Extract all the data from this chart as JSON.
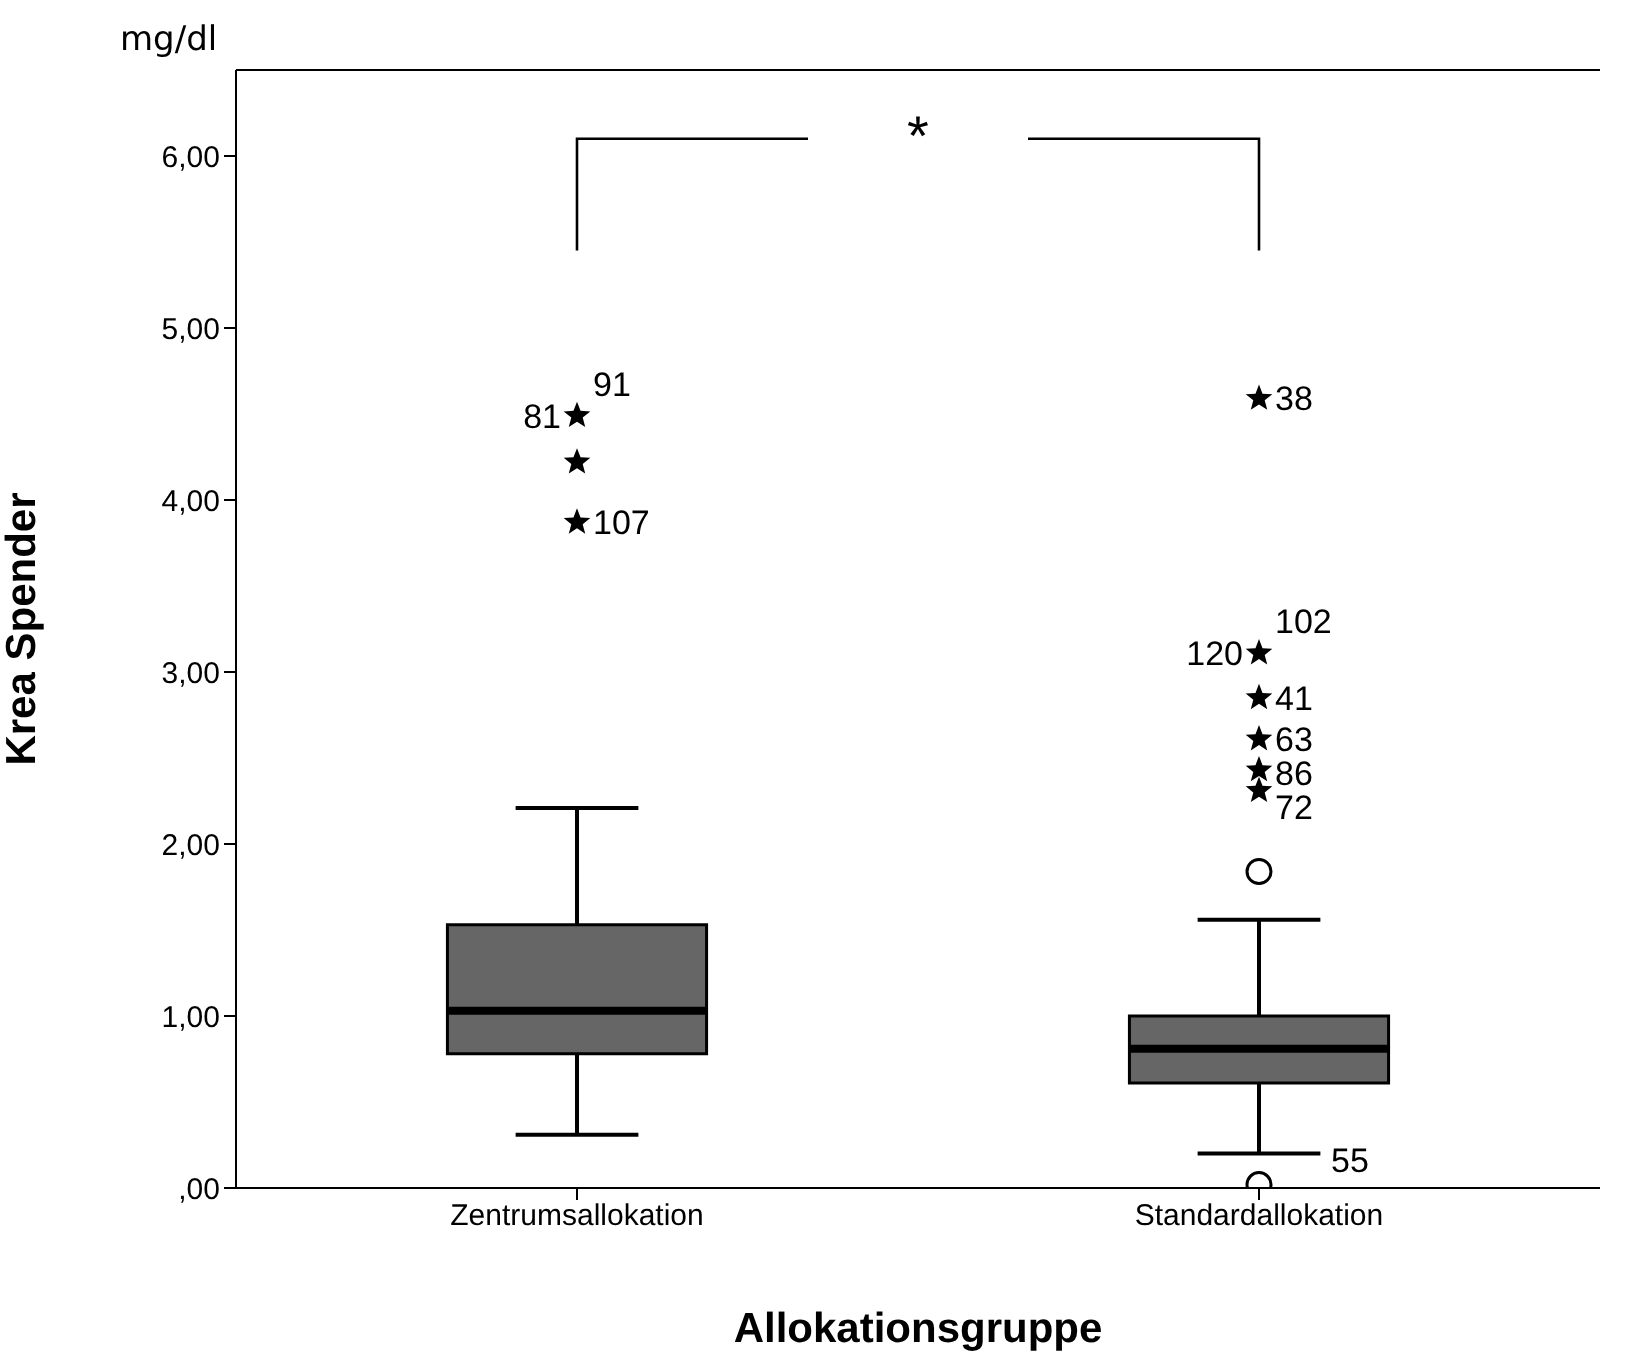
{
  "chart_data": {
    "type": "box",
    "xlabel": "Allokationsgruppe",
    "ylabel": "Krea Spender",
    "categories": [
      "Zentrumsallokation",
      "Standardallokation"
    ],
    "ylim": [
      0,
      6.5
    ],
    "yticks": [
      {
        "value": 0,
        "label": ",00"
      },
      {
        "value": 1,
        "label": "1,00"
      },
      {
        "value": 2,
        "label": "2,00"
      },
      {
        "value": 3,
        "label": "3,00"
      },
      {
        "value": 4,
        "label": "4,00"
      },
      {
        "value": 5,
        "label": "5,00"
      },
      {
        "value": 6,
        "label": "6,00"
      }
    ],
    "series": [
      {
        "type": "box",
        "color": "#666666",
        "boxes": [
          {
            "low": 0.31,
            "q1": 0.78,
            "median": 1.03,
            "q3": 1.53,
            "high": 2.21
          },
          {
            "low": 0.2,
            "q1": 0.61,
            "median": 0.81,
            "q3": 1.0,
            "high": 1.56
          }
        ]
      },
      {
        "type": "scatter",
        "marker": "star",
        "color": "#000000",
        "x": [
          "Zentrumsallokation",
          "Zentrumsallokation",
          "Zentrumsallokation",
          "Standardallokation",
          "Standardallokation",
          "Standardallokation",
          "Standardallokation",
          "Standardallokation",
          "Standardallokation"
        ],
        "values": [
          4.49,
          4.22,
          3.87,
          4.59,
          3.11,
          2.85,
          2.61,
          2.43,
          2.31
        ]
      },
      {
        "type": "scatter",
        "marker": "circle",
        "color": "#000000",
        "x": [
          "Standardallokation",
          "Standardallokation"
        ],
        "values": [
          1.84,
          0.02
        ]
      }
    ],
    "annotations": [
      "mg/dl",
      "*",
      {
        "text": "91",
        "x": "Zentrumsallokation",
        "y": 4.49
      },
      {
        "text": "81",
        "x": "Zentrumsallokation",
        "y": 4.49
      },
      {
        "text": "107",
        "x": "Zentrumsallokation",
        "y": 3.87
      },
      {
        "text": "38",
        "x": "Standardallokation",
        "y": 4.59
      },
      {
        "text": "102",
        "x": "Standardallokation",
        "y": 3.11
      },
      {
        "text": "120",
        "x": "Standardallokation",
        "y": 3.11
      },
      {
        "text": "41",
        "x": "Standardallokation",
        "y": 2.85
      },
      {
        "text": "63",
        "x": "Standardallokation",
        "y": 2.61
      },
      {
        "text": "86",
        "x": "Standardallokation",
        "y": 2.43
      },
      {
        "text": "72",
        "x": "Standardallokation",
        "y": 2.31
      },
      {
        "text": "55",
        "x": "Standardallokation",
        "y": 0.02
      }
    ]
  }
}
